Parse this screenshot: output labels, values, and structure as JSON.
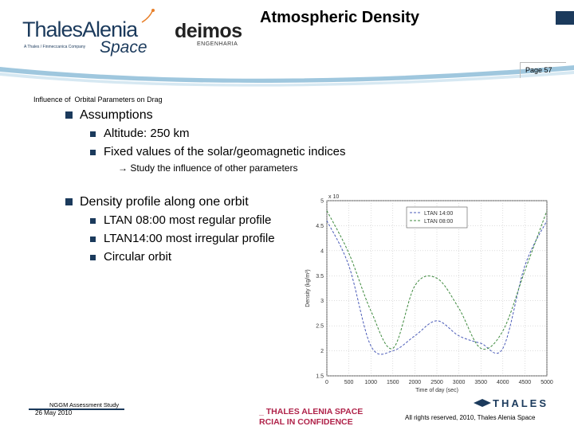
{
  "header": {
    "logo_company": "ThalesAlenia",
    "logo_tagline": "A Thales / Finmeccanica Company",
    "logo_space": "Space",
    "partner_logo": "deimos",
    "partner_sub": "ENGENHARIA",
    "title": "Atmospheric Density",
    "page_label": "Page 57"
  },
  "section_label": "Influence of  Orbital Parameters on Drag",
  "bullets_a": {
    "main": "Assumptions",
    "subs": [
      "Altitude: 250 km",
      "Fixed values of the solar/geomagnetic indices"
    ],
    "note": "→ Study the influence of other parameters"
  },
  "bullets_b": {
    "main": "Density profile along one orbit",
    "subs": [
      "LTAN 08:00 most regular profile",
      "LTAN14:00 most irregular profile",
      "Circular orbit"
    ]
  },
  "chart_data": {
    "type": "line",
    "exponent": "x 10",
    "xlabel": "Time of day (sec)",
    "ylabel": "Density (kg/m³)",
    "xticks": [
      "0",
      "500",
      "1000",
      "1500",
      "2000",
      "2500",
      "3000",
      "3500",
      "4000",
      "4500",
      "5000"
    ],
    "yticks": [
      "1.5",
      "2",
      "2.5",
      "3",
      "3.5",
      "4",
      "4.5",
      "5"
    ],
    "xlim": [
      0,
      5000
    ],
    "ylim": [
      1.5,
      5
    ],
    "grid": true,
    "legend_position": "top-right",
    "series": [
      {
        "name": "LTAN 14:00",
        "color": "#4a5bb8",
        "x": [
          0,
          500,
          1000,
          1500,
          2000,
          2500,
          3000,
          3500,
          4000,
          4500,
          5000
        ],
        "y": [
          4.6,
          3.7,
          2.1,
          2.0,
          2.3,
          2.6,
          2.3,
          2.15,
          2.05,
          3.7,
          4.6
        ]
      },
      {
        "name": "LTAN 08:00",
        "color": "#3e8a3e",
        "x": [
          0,
          500,
          1000,
          1500,
          2000,
          2500,
          3000,
          3500,
          4000,
          4500,
          5000
        ],
        "y": [
          4.8,
          3.95,
          2.8,
          2.05,
          3.3,
          3.45,
          2.85,
          2.05,
          2.4,
          3.6,
          4.8
        ]
      }
    ]
  },
  "footer": {
    "doc_title": "NGGM Assessment Study",
    "date": "26 May 2010",
    "conf_line1": "_ THALES ALENIA SPACE",
    "conf_line2": "RCIAL IN CONFIDENCE",
    "thales_logo": "THALES",
    "rights": "All rights reserved, 2010, Thales Alenia Space"
  },
  "colors": {
    "brand_blue": "#1b3a5c",
    "accent_orange": "#e8802a",
    "confidential": "#b0234a"
  },
  "icons": {
    "bullet": "square-bullet"
  }
}
